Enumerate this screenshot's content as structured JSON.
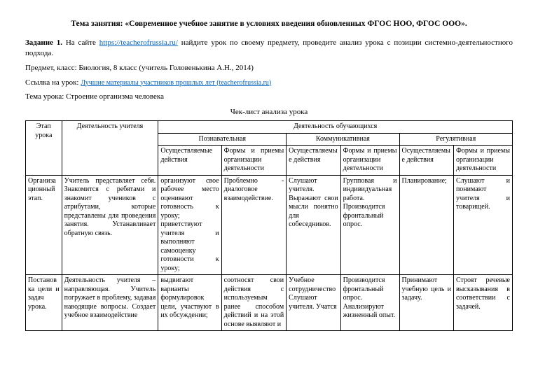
{
  "title": "Тема занятия: «Современное учебное занятие в условиях введения  обновленных ФГОС НОО, ФГОС ООО».",
  "task1_label": "Задание 1.",
  "task1_text_a": " На сайте ",
  "task1_link_text": "https://teacherofrussia.ru/",
  "task1_text_b": " найдите урок по своему предмету, проведите анализ урока с позиции системно-деятельностного подхода.",
  "subject_line": "Предмет, класс: Биология, 8 класс (учитель Головенькина А.Н., 2014)",
  "link_label": "Ссылка на урок: ",
  "link_anchor": "Лучшие материалы участников прошлых лет (teacherofrussia.ru)",
  "topic_line": "Тема урока: Строение организма человека",
  "checklist_title": "Чек-лист анализа урока",
  "headers": {
    "stage": "Этап урока",
    "teacher": "Деятельность учителя",
    "students": "Деятельность обучающихся",
    "cognitive": "Познавательная",
    "communicative": "Коммуникативная",
    "regulative": "Регулятивная",
    "actions": "Осуществляемые действия",
    "actions2": "Осуществляемые действия",
    "actions3": "Осуществляемые действия",
    "forms": "Формы и приемы организации деятельности",
    "forms2": "Формы и приемы организации деятельности",
    "forms3": "Формы и приемы организации деятельности"
  },
  "rows": [
    {
      "stage": "Организационный этап.",
      "teacher": "Учитель представляет себя. Знакомится с ребятами и знакомит учеников с атрибутами, которые представлены для проведения занятия. Устанавливает обратную связь.",
      "c3": "организуют свое рабочее место оценивают готовность к уроку; приветствуют учителя и выполняют самооценку готовности к уроку;",
      "c4": "Проблемно - диалоговое взаимодействие.",
      "c5": "Слушают учителя. Выражают свои мысли понятно для собеседников.",
      "c6": "Групповая и индивидуальная работа. Производится фронтальный опрос.",
      "c7": "Планирование;",
      "c8": "Слушают и понимают учителя и товарищей."
    },
    {
      "stage": "Постановка цели и задач урока.",
      "teacher": "Деятельность учителя – направляющая. Учитель погружает в проблему, задавая наводящие вопросы. Создает учебное взаимодействие",
      "c3": "выдвигают варианты формулировок цели, участвуют в их обсуждении;",
      "c4": "соотносят свои действия с используемым ранее способом действий и на этой основе выявляют и",
      "c5": "Учебное сотрудничество Слушают учителя. Учатся",
      "c6": "Производится фронтальный опрос. Анализируют жизненный опыт.",
      "c7": "Принимают учебную цель и задачу.",
      "c8": "Строят речевые высказывания в соответствии с задачей."
    }
  ]
}
